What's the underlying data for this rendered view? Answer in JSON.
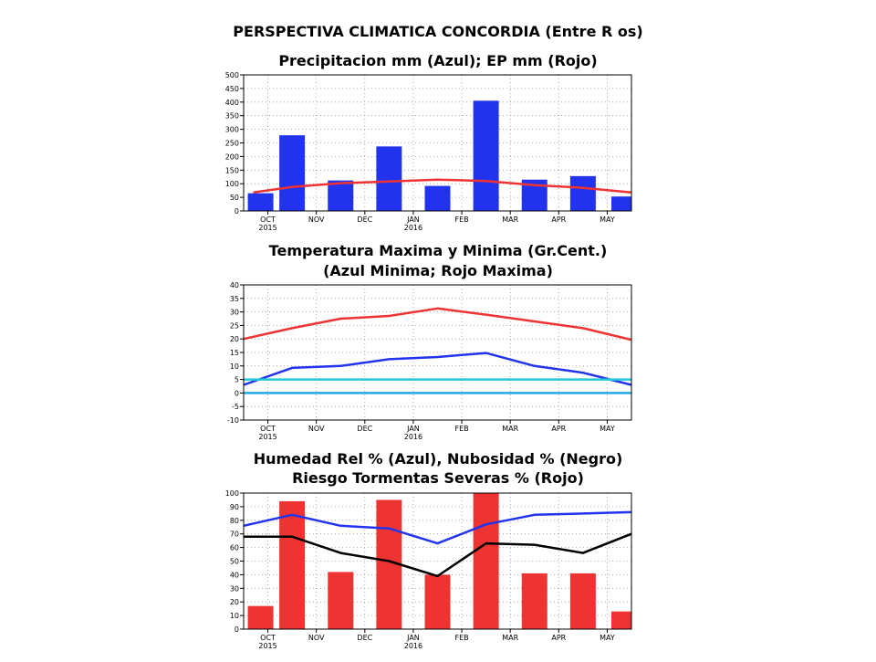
{
  "main_title": "PERSPECTIVA CLIMATICA CONCORDIA (Entre R os)",
  "chart_data": [
    {
      "type": "bar",
      "title": "Precipitacion mm (Azul); EP mm (Rojo)",
      "subtitle": "",
      "ylim": [
        0,
        500
      ],
      "yticks": [
        "0",
        "50",
        "100",
        "150",
        "200",
        "250",
        "300",
        "350",
        "400",
        "450",
        "500"
      ],
      "xticks": [
        {
          "label": "OCT",
          "year": "2015"
        },
        {
          "label": "NOV",
          "year": ""
        },
        {
          "label": "DEC",
          "year": ""
        },
        {
          "label": "JAN",
          "year": "2016"
        },
        {
          "label": "FEB",
          "year": ""
        },
        {
          "label": "MAR",
          "year": ""
        },
        {
          "label": "APR",
          "year": ""
        },
        {
          "label": "MAY",
          "year": ""
        }
      ],
      "grid": true,
      "bars": {
        "color": "#2233ee",
        "x": [
          8.85,
          9.5,
          10.5,
          11.5,
          12.5,
          13.5,
          14.5,
          15.5,
          16.35
        ],
        "values": [
          65,
          278,
          112,
          237,
          92,
          405,
          115,
          128,
          53
        ]
      },
      "lines": [
        {
          "color": "#ee3333",
          "x": [
            8.7,
            9.5,
            10.5,
            11.5,
            12.5,
            13.5,
            14.5,
            15.5,
            16.5
          ],
          "values": [
            68,
            88,
            102,
            108,
            115,
            110,
            95,
            85,
            68
          ]
        }
      ]
    },
    {
      "type": "line",
      "title": "Temperatura Maxima y Minima (Gr.Cent.)",
      "subtitle": "(Azul Minima; Rojo Maxima)",
      "ylim": [
        -10,
        40
      ],
      "yticks": [
        "-10",
        "-5",
        "0",
        "5",
        "10",
        "15",
        "20",
        "25",
        "30",
        "35",
        "40"
      ],
      "xticks": [
        {
          "label": "OCT",
          "year": "2015"
        },
        {
          "label": "NOV",
          "year": ""
        },
        {
          "label": "DEC",
          "year": ""
        },
        {
          "label": "JAN",
          "year": "2016"
        },
        {
          "label": "FEB",
          "year": ""
        },
        {
          "label": "MAR",
          "year": ""
        },
        {
          "label": "APR",
          "year": ""
        },
        {
          "label": "MAY",
          "year": ""
        }
      ],
      "grid": true,
      "bars": null,
      "lines": [
        {
          "color": "#ee3333",
          "x": [
            8.5,
            9.5,
            10.5,
            11.5,
            12.5,
            13.5,
            14.5,
            15.5,
            16.5
          ],
          "values": [
            20,
            24,
            27.5,
            28.5,
            31.3,
            29,
            26.5,
            24,
            19.7
          ]
        },
        {
          "color": "#2233ee",
          "x": [
            8.5,
            9.5,
            10.5,
            11.5,
            12.5,
            13.5,
            14.5,
            15.5,
            16.5
          ],
          "values": [
            3,
            9.3,
            10,
            12.5,
            13.3,
            14.8,
            10,
            7.5,
            3
          ]
        },
        {
          "color": "#22c8d8",
          "x": [
            8.5,
            16.5
          ],
          "values": [
            5,
            5
          ]
        },
        {
          "color": "#22a8e8",
          "x": [
            8.5,
            16.5
          ],
          "values": [
            0,
            0
          ]
        }
      ]
    },
    {
      "type": "bar",
      "title": "Humedad Rel % (Azul), Nubosidad % (Negro)",
      "subtitle": "Riesgo Tormentas Severas % (Rojo)",
      "ylim": [
        0,
        100
      ],
      "yticks": [
        "0",
        "10",
        "20",
        "30",
        "40",
        "50",
        "60",
        "70",
        "80",
        "90",
        "100"
      ],
      "xticks": [
        {
          "label": "OCT",
          "year": "2015"
        },
        {
          "label": "NOV",
          "year": ""
        },
        {
          "label": "DEC",
          "year": ""
        },
        {
          "label": "JAN",
          "year": "2016"
        },
        {
          "label": "FEB",
          "year": ""
        },
        {
          "label": "MAR",
          "year": ""
        },
        {
          "label": "APR",
          "year": ""
        },
        {
          "label": "MAY",
          "year": ""
        }
      ],
      "grid": true,
      "bars": {
        "color": "#ee3333",
        "x": [
          8.85,
          9.5,
          10.5,
          11.5,
          12.5,
          13.5,
          14.5,
          15.5,
          16.35
        ],
        "values": [
          17,
          94,
          42,
          95,
          40,
          100,
          41,
          41,
          13
        ]
      },
      "lines": [
        {
          "color": "#2233ee",
          "x": [
            8.5,
            9.5,
            10.5,
            11.5,
            12.5,
            13.5,
            14.5,
            15.5,
            16.5
          ],
          "values": [
            76,
            84,
            76,
            74,
            63,
            77,
            84,
            85,
            86
          ]
        },
        {
          "color": "#000000",
          "x": [
            8.5,
            9.5,
            10.5,
            11.5,
            12.5,
            13.5,
            14.5,
            15.5,
            16.5
          ],
          "values": [
            68,
            68,
            56,
            50,
            39,
            63,
            62,
            56,
            70
          ]
        }
      ]
    }
  ]
}
